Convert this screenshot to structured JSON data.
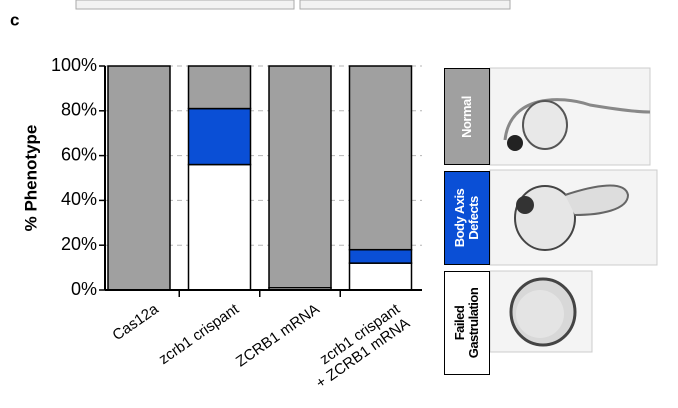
{
  "chart_data": {
    "type": "stacked_bar",
    "panel_label": "c",
    "y_label": "% Phenotype",
    "categories": [
      "Cas12a",
      "zcrb1 crispant",
      "ZCRB1 mRNA",
      "zcrb1 crispant\n+ ZCRB1 mRNA"
    ],
    "series": [
      {
        "name": "Failed Gastrulation",
        "color": "#ffffff",
        "text_color": "#000000",
        "values": [
          0,
          56,
          1,
          12
        ]
      },
      {
        "name": "Body Axis Defects",
        "color": "#0a4fd6",
        "text_color": "#ffffff",
        "values": [
          0,
          25,
          0,
          6
        ]
      },
      {
        "name": "Normal",
        "color": "#a0a0a0",
        "text_color": "#ffffff",
        "values": [
          100,
          19,
          99,
          82
        ]
      }
    ],
    "ylim": [
      0,
      100
    ],
    "yticks": [
      {
        "value": 0,
        "label": "0%"
      },
      {
        "value": 20,
        "label": "20%"
      },
      {
        "value": 40,
        "label": "40%"
      },
      {
        "value": 60,
        "label": "60%"
      },
      {
        "value": 80,
        "label": "80%"
      },
      {
        "value": 100,
        "label": "100%"
      }
    ],
    "grid": true
  }
}
